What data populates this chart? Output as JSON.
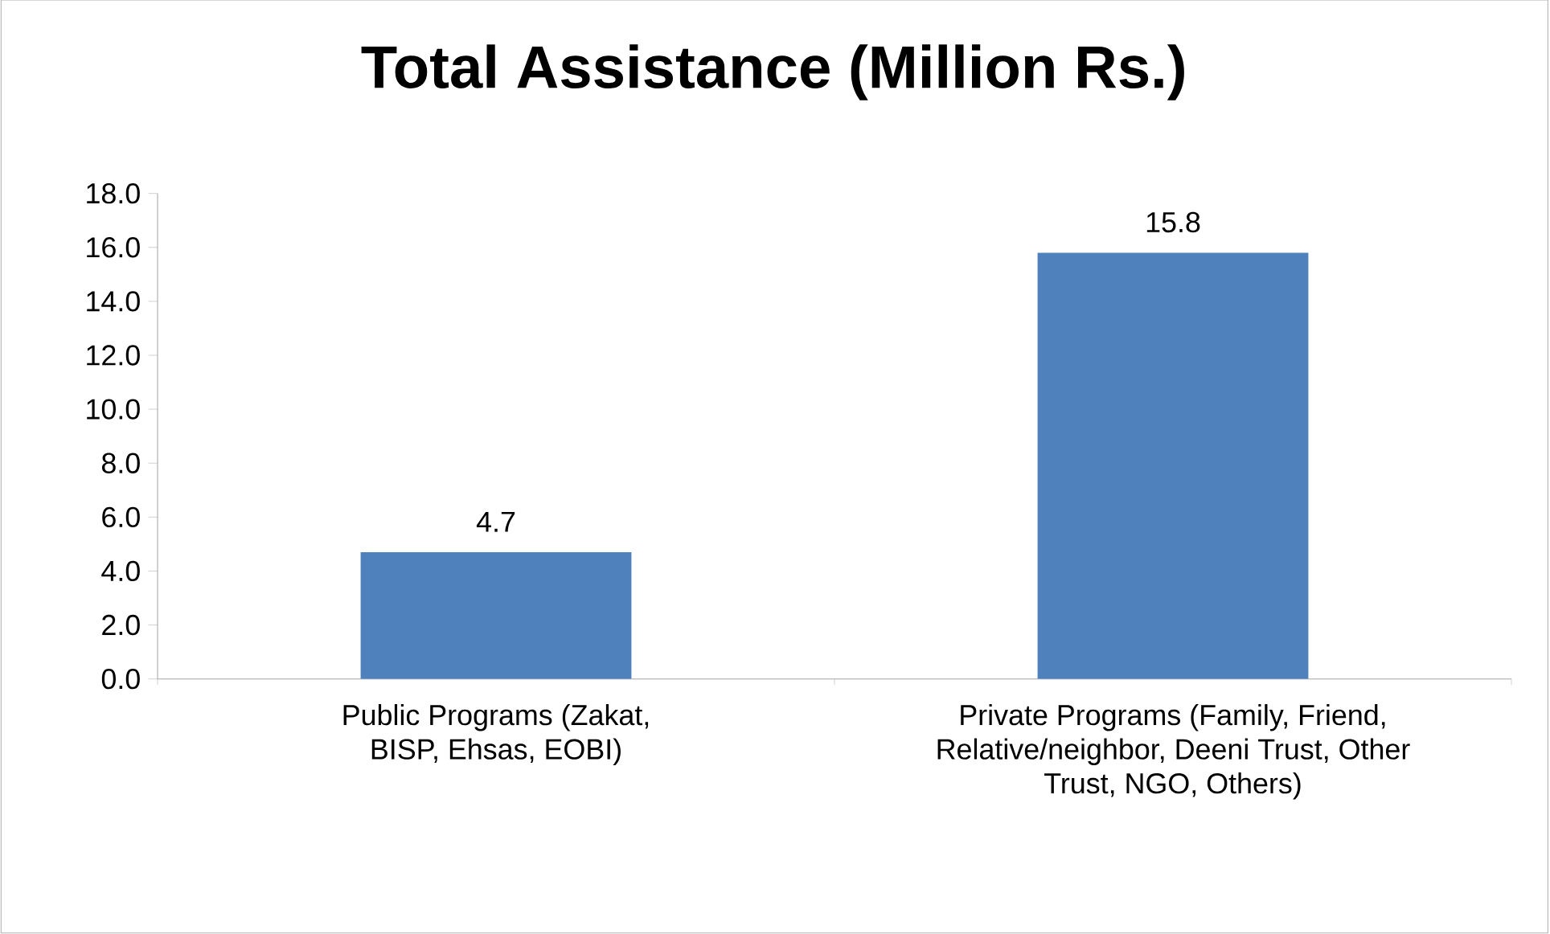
{
  "chart_data": {
    "type": "bar",
    "title": "Total Assistance (Million Rs.)",
    "categories": [
      "Public Programs (Zakat, BISP, Ehsas, EOBI)",
      "Private Programs (Family, Friend, Relative/neighbor, Deeni Trust, Other Trust, NGO, Others)"
    ],
    "values": [
      4.7,
      15.8
    ],
    "color": "#4f81bd",
    "data_labels": true,
    "ylim": [
      0,
      18
    ],
    "yticks": [
      {
        "value": 0,
        "label": "0.0"
      },
      {
        "value": 2,
        "label": "2.0"
      },
      {
        "value": 4,
        "label": "4.0"
      },
      {
        "value": 6,
        "label": "6.0"
      },
      {
        "value": 8,
        "label": "8.0"
      },
      {
        "value": 10,
        "label": "10.0"
      },
      {
        "value": 12,
        "label": "12.0"
      },
      {
        "value": 14,
        "label": "14.0"
      },
      {
        "value": 16,
        "label": "16.0"
      },
      {
        "value": 18,
        "label": "18.0"
      }
    ],
    "grid": false
  }
}
